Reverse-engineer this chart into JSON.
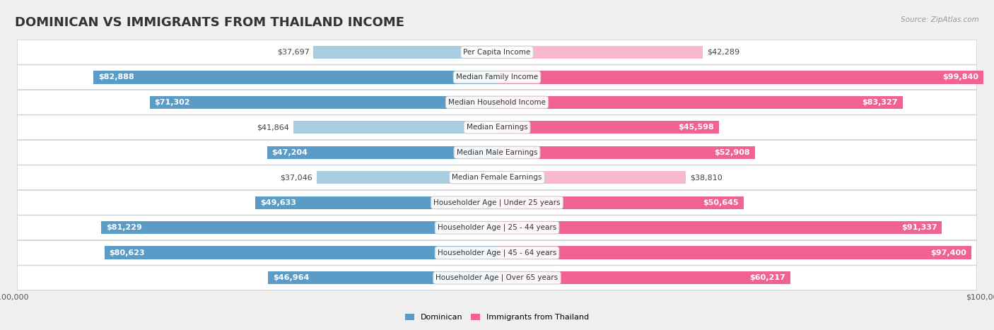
{
  "title": "DOMINICAN VS IMMIGRANTS FROM THAILAND INCOME",
  "source": "Source: ZipAtlas.com",
  "categories": [
    "Per Capita Income",
    "Median Family Income",
    "Median Household Income",
    "Median Earnings",
    "Median Male Earnings",
    "Median Female Earnings",
    "Householder Age | Under 25 years",
    "Householder Age | 25 - 44 years",
    "Householder Age | 45 - 64 years",
    "Householder Age | Over 65 years"
  ],
  "dominican_values": [
    37697,
    82888,
    71302,
    41864,
    47204,
    37046,
    49633,
    81229,
    80623,
    46964
  ],
  "thailand_values": [
    42289,
    99840,
    83327,
    45598,
    52908,
    38810,
    50645,
    91337,
    97400,
    60217
  ],
  "dominican_labels": [
    "$37,697",
    "$82,888",
    "$71,302",
    "$41,864",
    "$47,204",
    "$37,046",
    "$49,633",
    "$81,229",
    "$80,623",
    "$46,964"
  ],
  "thailand_labels": [
    "$42,289",
    "$99,840",
    "$83,327",
    "$45,598",
    "$52,908",
    "$38,810",
    "$50,645",
    "$91,337",
    "$97,400",
    "$60,217"
  ],
  "dominican_light_color": "#a8cce0",
  "dominican_dark_color": "#5b9bc8",
  "thailand_light_color": "#f9b8cd",
  "thailand_dark_color": "#f06292",
  "inside_threshold": 0.45,
  "max_value": 100000,
  "background_color": "#f0f0f0",
  "row_bg_color": "#ffffff",
  "row_border_color": "#d0d0d0",
  "title_fontsize": 13,
  "label_fontsize": 8,
  "cat_fontsize": 7.5,
  "tick_fontsize": 8,
  "legend_dominican": "Dominican",
  "legend_thailand": "Immigrants from Thailand"
}
